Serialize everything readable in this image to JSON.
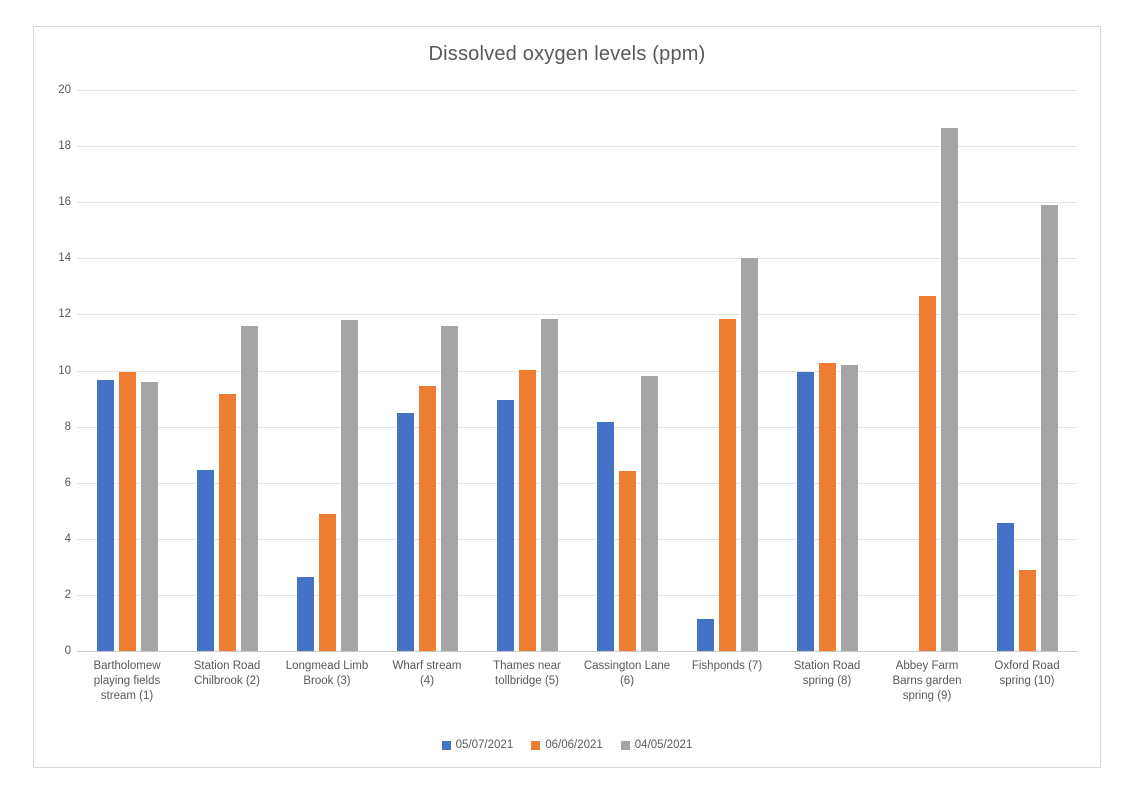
{
  "chart_data": {
    "type": "bar",
    "title": "Dissolved oxygen levels (ppm)",
    "xlabel": "",
    "ylabel": "",
    "ylim": [
      0,
      20
    ],
    "ytick_step": 2,
    "yticks": [
      0,
      2,
      4,
      6,
      8,
      10,
      12,
      14,
      16,
      18,
      20
    ],
    "grid": true,
    "legend_position": "bottom",
    "categories": [
      "Bartholomew playing fields stream (1)",
      "Station Road Chilbrook (2)",
      "Longmead Limb Brook (3)",
      "Wharf stream (4)",
      "Thames near tollbridge (5)",
      "Cassington Lane (6)",
      "Fishponds (7)",
      "Station Road spring (8)",
      "Abbey Farm Barns garden spring (9)",
      "Oxford Road spring (10)"
    ],
    "category_lines": [
      [
        "Bartholomew",
        "playing fields",
        "stream (1)"
      ],
      [
        "Station Road",
        "Chilbrook (2)"
      ],
      [
        "Longmead Limb",
        "Brook (3)"
      ],
      [
        "Wharf stream",
        "(4)"
      ],
      [
        "Thames near",
        "tollbridge (5)"
      ],
      [
        "Cassington Lane",
        "(6)"
      ],
      [
        "Fishponds (7)"
      ],
      [
        "Station Road",
        "spring (8)"
      ],
      [
        "Abbey Farm",
        "Barns garden",
        "spring (9)"
      ],
      [
        "Oxford Road",
        "spring (10)"
      ]
    ],
    "series": [
      {
        "name": "05/07/2021",
        "color": "#4472c4",
        "values": [
          9.65,
          6.45,
          2.65,
          8.5,
          8.95,
          8.15,
          1.15,
          9.95,
          0,
          4.55
        ]
      },
      {
        "name": "06/06/2021",
        "color": "#ed7d31",
        "values": [
          9.95,
          9.15,
          4.9,
          9.45,
          10.0,
          6.4,
          11.85,
          10.25,
          12.65,
          2.9
        ]
      },
      {
        "name": "04/05/2021",
        "color": "#a5a5a5",
        "values": [
          9.6,
          11.6,
          11.8,
          11.6,
          11.85,
          9.8,
          14.0,
          10.2,
          18.65,
          15.9
        ]
      }
    ]
  },
  "colors": {
    "title_text": "#595959",
    "axis_text": "#595959",
    "gridline": "#e2e2e2",
    "axis_line": "#c9c9c9",
    "chart_border": "#d6d6d6",
    "background": "#ffffff"
  }
}
